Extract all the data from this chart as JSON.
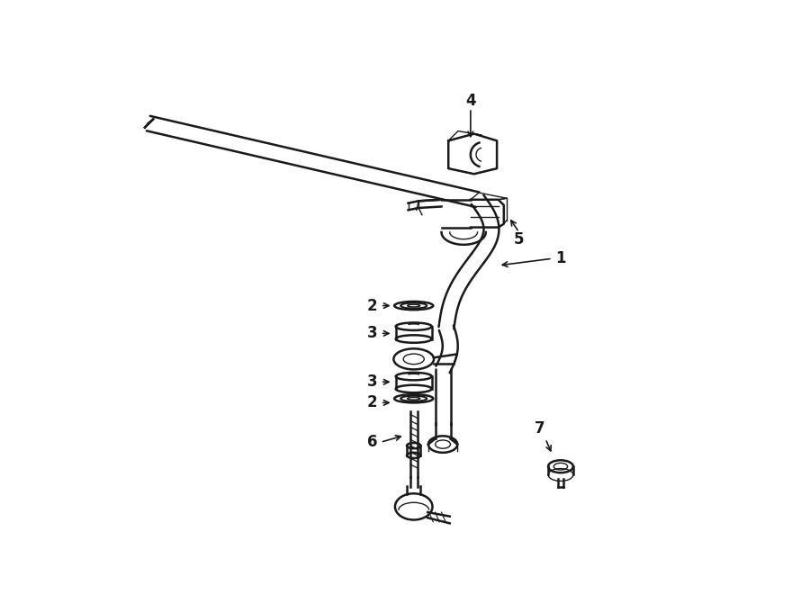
{
  "bg_color": "#ffffff",
  "line_color": "#1a1a1a",
  "fig_width": 9.0,
  "fig_height": 6.61,
  "dpi": 100,
  "bar_color": "#1a1a1a",
  "lw_main": 1.8,
  "lw_thin": 1.0,
  "lw_thick": 2.2,
  "font_size": 12,
  "font_weight": "bold"
}
